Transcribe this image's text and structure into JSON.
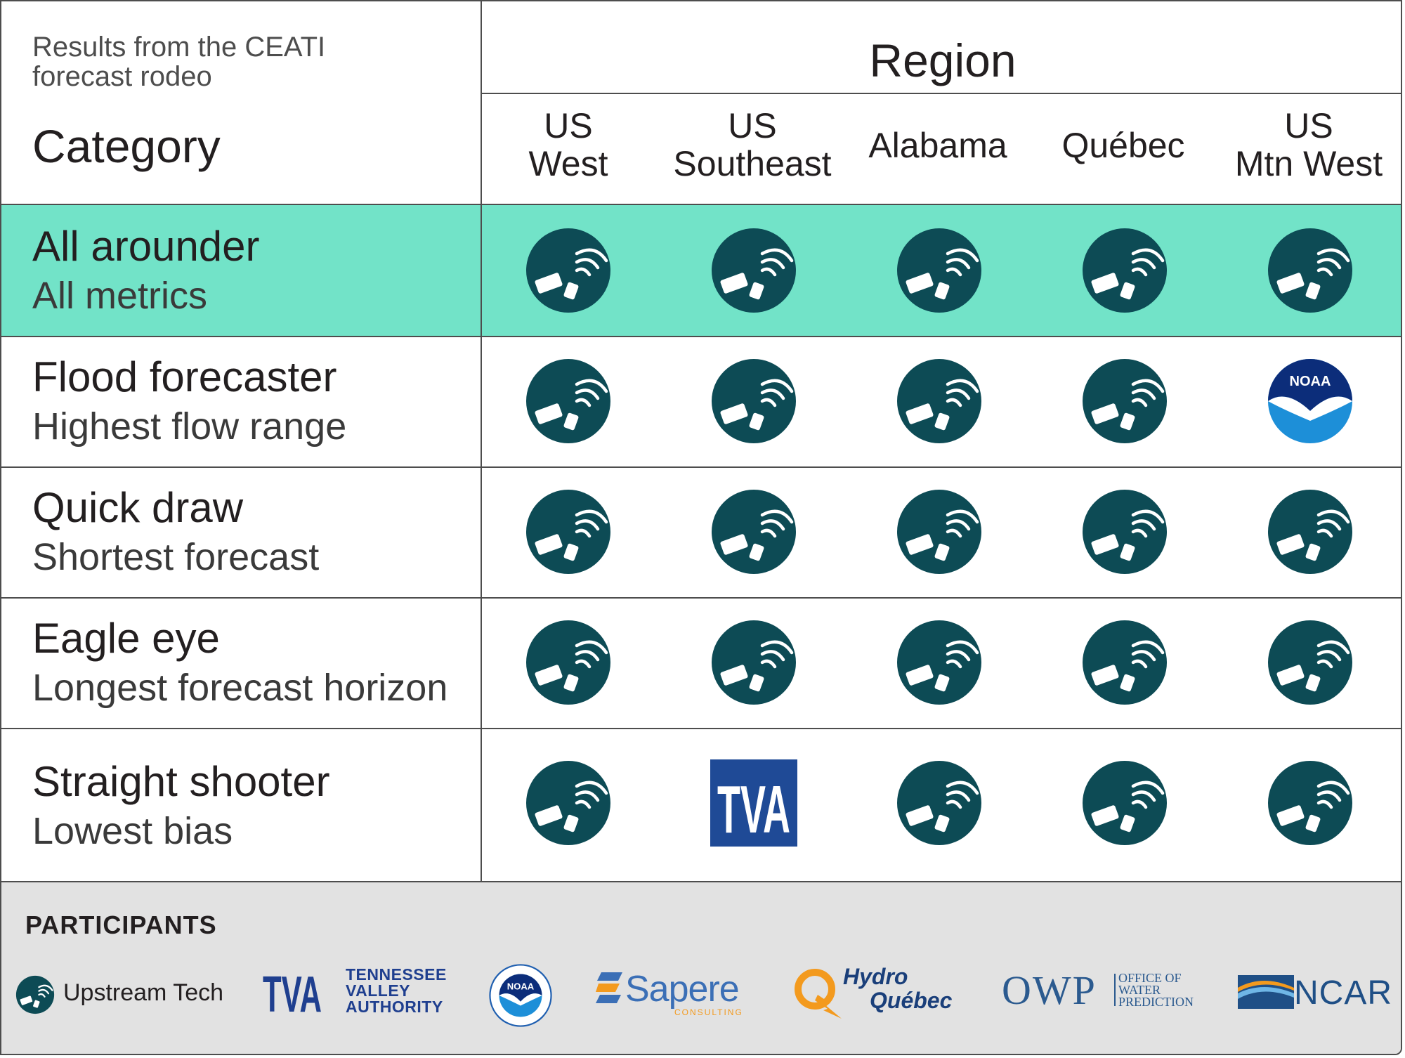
{
  "header": {
    "subtitle": "Results from the CEATI forecast rodeo",
    "category_label": "Category",
    "region_label": "Region"
  },
  "regions": [
    {
      "line1": "US",
      "line2": "West"
    },
    {
      "line1": "US",
      "line2": "Southeast"
    },
    {
      "line1": "Alabama",
      "line2": ""
    },
    {
      "line1": "Québec",
      "line2": ""
    },
    {
      "line1": "US",
      "line2": "Mtn West"
    }
  ],
  "categories": [
    {
      "title": "All arounder",
      "subtitle": "All metrics",
      "highlight": true,
      "winners": [
        "Upstream Tech",
        "Upstream Tech",
        "Upstream Tech",
        "Upstream Tech",
        "Upstream Tech"
      ]
    },
    {
      "title": "Flood forecaster",
      "subtitle": "Highest flow range",
      "highlight": false,
      "winners": [
        "Upstream Tech",
        "Upstream Tech",
        "Upstream Tech",
        "Upstream Tech",
        "NOAA"
      ]
    },
    {
      "title": "Quick draw",
      "subtitle": "Shortest forecast",
      "highlight": false,
      "winners": [
        "Upstream Tech",
        "Upstream Tech",
        "Upstream Tech",
        "Upstream Tech",
        "Upstream Tech"
      ]
    },
    {
      "title": "Eagle eye",
      "subtitle": "Longest forecast horizon",
      "highlight": false,
      "winners": [
        "Upstream Tech",
        "Upstream Tech",
        "Upstream Tech",
        "Upstream Tech",
        "Upstream Tech"
      ]
    },
    {
      "title": "Straight shooter",
      "subtitle": "Lowest bias",
      "highlight": false,
      "winners": [
        "Upstream Tech",
        "TVA",
        "Upstream Tech",
        "Upstream Tech",
        "Upstream Tech"
      ]
    }
  ],
  "participants": {
    "label": "PARTICIPANTS",
    "upstream": "Upstream Tech",
    "tva_mark": "TVA",
    "tva_name": [
      "TENNESSEE",
      "VALLEY",
      "AUTHORITY"
    ],
    "noaa_mark": "NOAA",
    "sapere": "Sapere",
    "sapere_sub": "CONSULTING",
    "hydro": [
      "Hydro",
      "Québec"
    ],
    "owp_mark": "OWP",
    "owp_name": [
      "OFFICE OF",
      "WATER",
      "PREDICTION"
    ],
    "ncar": "NCAR"
  },
  "colors": {
    "highlight_row": "#72e3c8",
    "upstream_icon": "#0d4b55",
    "tva_blue": "#1f4a96",
    "noaa_blue": "#1f5fb0",
    "participants_bg": "#e2e2e2",
    "grid_line": "#4d4d4d"
  },
  "icons": {
    "Upstream Tech": "satellite-icon",
    "TVA": "tva-logo-icon",
    "NOAA": "noaa-logo-icon"
  }
}
